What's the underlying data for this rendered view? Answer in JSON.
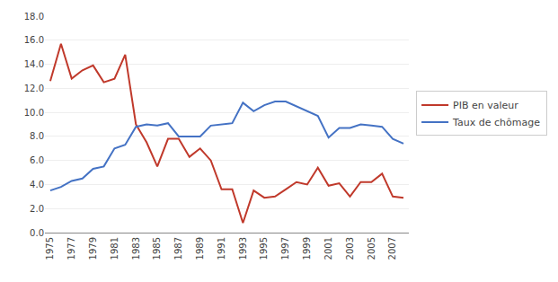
{
  "chart_data": {
    "type": "line",
    "x": [
      1975,
      1976,
      1977,
      1978,
      1979,
      1980,
      1981,
      1982,
      1983,
      1984,
      1985,
      1986,
      1987,
      1988,
      1989,
      1990,
      1991,
      1992,
      1993,
      1994,
      1995,
      1996,
      1997,
      1998,
      1999,
      2000,
      2001,
      2002,
      2003,
      2004,
      2005,
      2006,
      2007,
      2008
    ],
    "series": [
      {
        "name": "PIB en valeur",
        "color": "#c0392b",
        "values": [
          12.6,
          15.7,
          12.8,
          13.5,
          13.9,
          12.5,
          12.8,
          14.8,
          9.0,
          7.5,
          5.5,
          7.8,
          7.8,
          6.3,
          7.0,
          6.0,
          3.6,
          3.6,
          0.8,
          3.5,
          2.9,
          3.0,
          3.6,
          4.2,
          4.0,
          5.4,
          3.9,
          4.1,
          3.0,
          4.2,
          4.2,
          4.9,
          3.0,
          2.9
        ]
      },
      {
        "name": "Taux de chômage",
        "color": "#4472c4",
        "values": [
          3.5,
          3.8,
          4.3,
          4.5,
          5.3,
          5.5,
          7.0,
          7.3,
          8.8,
          9.0,
          8.9,
          9.1,
          8.0,
          8.0,
          8.0,
          8.9,
          9.0,
          9.1,
          10.8,
          10.1,
          10.6,
          10.9,
          10.9,
          10.5,
          10.1,
          9.7,
          7.9,
          8.7,
          8.7,
          9.0,
          8.9,
          8.8,
          7.8,
          7.4
        ]
      }
    ],
    "xlim": [
      1974.5,
      2008.5
    ],
    "xticks": [
      1975,
      1977,
      1979,
      1981,
      1983,
      1985,
      1987,
      1989,
      1991,
      1993,
      1995,
      1997,
      1999,
      2001,
      2003,
      2005,
      2007
    ],
    "ylim": [
      0,
      18
    ],
    "yticks": [
      {
        "value": 0,
        "label": "0.0"
      },
      {
        "value": 2,
        "label": "2.0"
      },
      {
        "value": 4,
        "label": "4.0"
      },
      {
        "value": 6,
        "label": "6.0"
      },
      {
        "value": 8,
        "label": "8.0"
      },
      {
        "value": 10,
        "label": "10.0"
      },
      {
        "value": 12,
        "label": "12.0"
      },
      {
        "value": 14,
        "label": "14.0"
      },
      {
        "value": 16,
        "label": "16.0"
      },
      {
        "value": 18,
        "label": "18.0"
      }
    ],
    "grid": true,
    "legend": "right"
  }
}
